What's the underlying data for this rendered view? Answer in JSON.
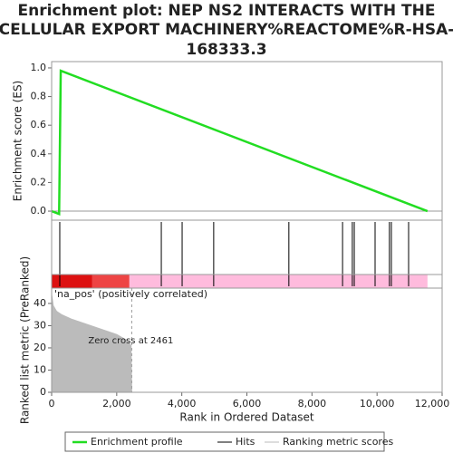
{
  "title_lines": [
    "Enrichment plot: NEP NS2 INTERACTS WITH THE",
    "CELLULAR EXPORT MACHINERY%REACTOME%R-HSA-",
    "168333.3"
  ],
  "chart_data": [
    {
      "type": "line",
      "ylabel": "Enrichment score (ES)",
      "ylim": [
        -0.063,
        1.044
      ],
      "yticks": [
        {
          "value": 0,
          "label": "0.0"
        },
        0.2,
        0.4,
        0.6,
        0.8,
        {
          "value": 1,
          "label": "1.0"
        }
      ],
      "series": [
        {
          "name": "Enrichment profile",
          "color": "#22dd22",
          "x": [
            0,
            230,
            280,
            11550
          ],
          "values": [
            0,
            -0.02,
            0.98,
            0
          ]
        }
      ]
    },
    {
      "type": "hits",
      "series": [
        {
          "name": "Hits",
          "color": "#000000",
          "x": [
            250,
            3370,
            4010,
            4980,
            7290,
            8940,
            9240,
            9300,
            9940,
            10380,
            10440,
            10970
          ]
        }
      ],
      "bands": [
        {
          "color": "#dd1111",
          "start": 0,
          "end": 1250
        },
        {
          "color": "#ee4444",
          "start": 1250,
          "end": 2390
        },
        {
          "color": "#ffbbdd",
          "start": 2390,
          "end": 11550
        }
      ],
      "band_label": "'na_pos' (positively correlated)"
    },
    {
      "type": "area",
      "ylabel": "Ranked list metric (PreRanked)",
      "xlabel": "Rank in Ordered Dataset",
      "xlim": [
        0,
        12000
      ],
      "xticks": [
        0,
        {
          "value": 2000,
          "label": "2,000"
        },
        {
          "value": 4000,
          "label": "4,000"
        },
        {
          "value": 6000,
          "label": "6,000"
        },
        {
          "value": 8000,
          "label": "8,000"
        },
        {
          "value": 10000,
          "label": "10,000"
        },
        {
          "value": 12000,
          "label": "12,000"
        }
      ],
      "ylim": [
        0,
        46.9
      ],
      "yticks": [
        0,
        10,
        20,
        30,
        40
      ],
      "series": [
        {
          "name": "Ranking metric scores",
          "color": "#bbbbbb",
          "x": [
            0,
            50,
            150,
            300,
            600,
            1000,
            1500,
            2000,
            2300,
            2440,
            2461
          ],
          "values": [
            44,
            39,
            36.5,
            35,
            33,
            31,
            28.5,
            26,
            23.5,
            21,
            0
          ]
        }
      ],
      "zero_cross": 2461,
      "annotation": "Zero cross at 2461"
    }
  ]
}
